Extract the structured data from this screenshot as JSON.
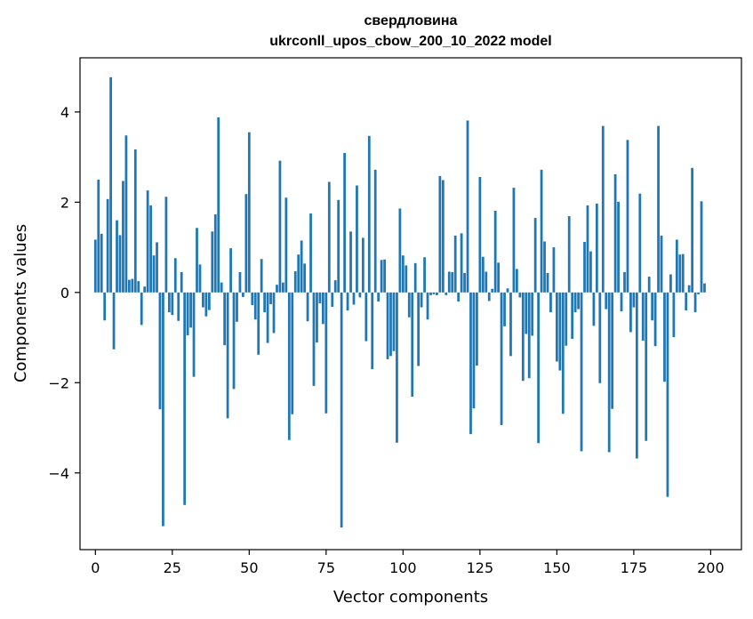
{
  "chart_data": {
    "type": "bar",
    "title": "свердловина",
    "subtitle": "ukrconll_upos_cbow_200_10_2022 model",
    "xlabel": "Vector components",
    "ylabel": "Components values",
    "xlim": [
      -5,
      210
    ],
    "ylim": [
      -5.7,
      5.2
    ],
    "xticks": [
      0,
      25,
      50,
      75,
      100,
      125,
      150,
      175,
      200
    ],
    "yticks": [
      -4,
      -2,
      0,
      2,
      4
    ],
    "xtick_labels": [
      "0",
      "25",
      "50",
      "75",
      "100",
      "125",
      "150",
      "175",
      "200"
    ],
    "ytick_labels": [
      "−4",
      "−2",
      "0",
      "2",
      "4"
    ],
    "bar_color": "#1f77b4",
    "grid": false,
    "legend": "none",
    "values": [
      1.17,
      2.5,
      1.3,
      -0.62,
      2.07,
      4.77,
      -1.26,
      1.6,
      1.27,
      2.47,
      3.48,
      0.28,
      0.3,
      3.17,
      0.25,
      -0.72,
      0.13,
      2.26,
      1.93,
      0.82,
      1.11,
      -2.59,
      -5.18,
      2.12,
      -0.44,
      -0.5,
      0.76,
      -0.63,
      0.45,
      -4.71,
      -0.95,
      -0.78,
      -1.87,
      1.43,
      0.62,
      -0.33,
      -0.53,
      -0.39,
      1.35,
      1.73,
      3.88,
      0.22,
      -1.17,
      -2.79,
      0.98,
      -2.14,
      -0.65,
      0.45,
      -0.1,
      2.18,
      3.55,
      -0.28,
      -0.6,
      -1.38,
      0.74,
      -0.44,
      -1.12,
      -0.26,
      -0.9,
      0.17,
      2.92,
      0.22,
      2.1,
      -3.27,
      -2.7,
      0.47,
      0.84,
      1.15,
      0.64,
      -0.64,
      1.75,
      -2.07,
      -1.11,
      -0.24,
      -0.7,
      -2.68,
      2.45,
      -0.32,
      0.27,
      2.05,
      -5.21,
      3.09,
      -0.4,
      1.35,
      -0.27,
      2.37,
      -0.11,
      1.21,
      -1.08,
      3.47,
      -1.7,
      2.72,
      -0.2,
      0.72,
      0.73,
      -1.48,
      -1.41,
      -1.3,
      -3.33,
      1.86,
      0.82,
      0.6,
      -0.55,
      -2.31,
      0.65,
      -1.63,
      -0.33,
      0.78,
      -0.6,
      -0.06,
      -0.04,
      -0.06,
      2.58,
      2.49,
      -0.06,
      0.46,
      0.45,
      1.26,
      -0.2,
      1.31,
      0.43,
      3.81,
      -3.14,
      -2.57,
      -1.62,
      2.56,
      0.79,
      0.46,
      -0.19,
      0.08,
      1.81,
      0.66,
      -2.94,
      -0.75,
      0.09,
      -1.41,
      2.32,
      0.52,
      -0.11,
      -1.96,
      -0.92,
      -1.9,
      -0.96,
      1.65,
      -3.34,
      2.72,
      1.13,
      0.43,
      -0.44,
      1.0,
      -1.53,
      -1.73,
      -2.69,
      -1.18,
      1.69,
      -1.03,
      -0.44,
      -0.37,
      -3.52,
      1.12,
      1.93,
      0.91,
      -0.74,
      1.97,
      -2.01,
      3.69,
      -0.37,
      -3.54,
      -2.58,
      2.62,
      2.01,
      -0.42,
      0.45,
      3.38,
      -0.88,
      -0.33,
      -3.68,
      2.19,
      -1.07,
      -3.29,
      0.35,
      -0.62,
      -1.19,
      3.69,
      1.26,
      -1.98,
      -4.53,
      0.4,
      -0.99,
      1.17,
      0.84,
      0.85,
      -0.4,
      0.16,
      2.76,
      -0.44,
      -0.04,
      2.02,
      0.2
    ]
  }
}
